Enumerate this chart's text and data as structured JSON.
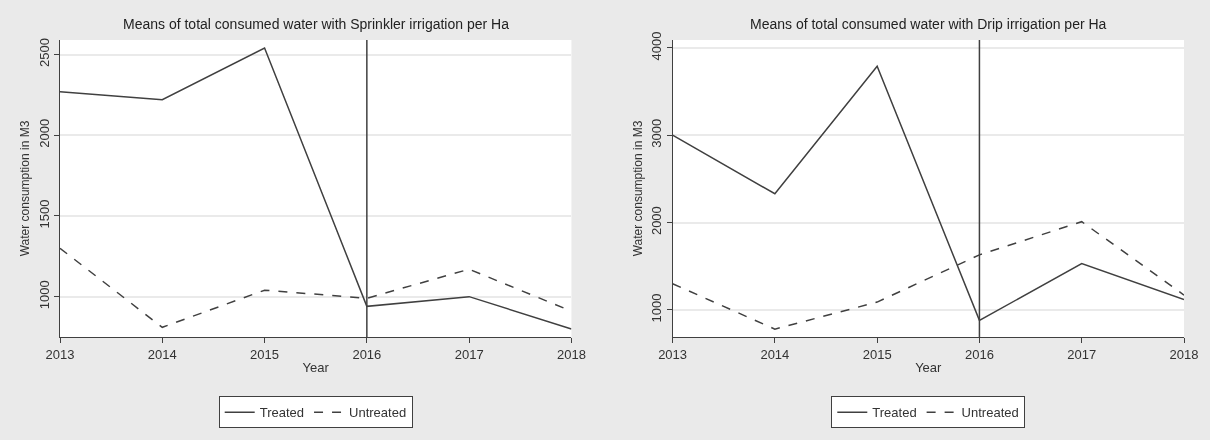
{
  "chart_data": [
    {
      "type": "line",
      "title": "Means of total consumed water with Sprinkler irrigation per Ha",
      "xlabel": "Year",
      "ylabel": "Water consumption in M3",
      "x": [
        2013,
        2014,
        2015,
        2016,
        2017,
        2018
      ],
      "series": [
        {
          "name": "Treated",
          "color": "#404040",
          "line_style": "solid",
          "values": [
            2270,
            2220,
            2540,
            940,
            1000,
            800
          ]
        },
        {
          "name": "Untreated",
          "color": "#404040",
          "line_style": "dashed",
          "values": [
            1300,
            810,
            1040,
            990,
            1170,
            910
          ]
        }
      ],
      "xlim": [
        2013,
        2018
      ],
      "xticks": [
        2013,
        2014,
        2015,
        2016,
        2017,
        2018
      ],
      "ylim": [
        750,
        2590
      ],
      "yticks": [
        1000,
        1500,
        2000,
        2500
      ],
      "ref_lines": [
        {
          "axis": "x",
          "value": 2016,
          "color": "#404040"
        }
      ],
      "grid": "y",
      "legend": "bottom"
    },
    {
      "type": "line",
      "title": "Means of total consumed water with Drip irrigation per Ha",
      "xlabel": "Year",
      "ylabel": "Water consumption in M3",
      "x": [
        2013,
        2014,
        2015,
        2016,
        2017,
        2018
      ],
      "series": [
        {
          "name": "Treated",
          "color": "#404040",
          "line_style": "solid",
          "values": [
            3000,
            2330,
            3790,
            880,
            1530,
            1120
          ]
        },
        {
          "name": "Untreated",
          "color": "#404040",
          "line_style": "dashed",
          "values": [
            1300,
            780,
            1090,
            1630,
            2010,
            1170
          ]
        }
      ],
      "xlim": [
        2013,
        2018
      ],
      "xticks": [
        2013,
        2014,
        2015,
        2016,
        2017,
        2018
      ],
      "ylim": [
        690,
        4090
      ],
      "yticks": [
        1000,
        2000,
        3000,
        4000
      ],
      "ref_lines": [
        {
          "axis": "x",
          "value": 2016,
          "color": "#404040"
        }
      ],
      "grid": "y",
      "legend": "bottom"
    }
  ]
}
